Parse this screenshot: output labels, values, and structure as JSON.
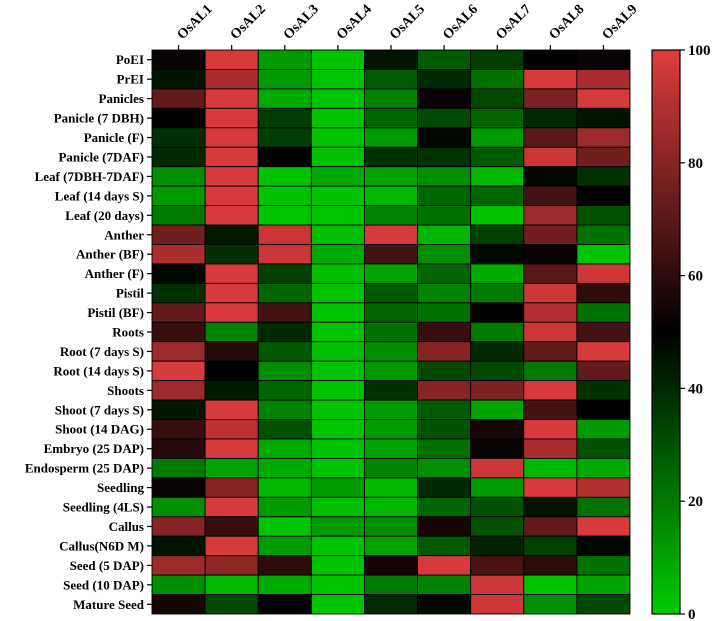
{
  "chart_data": {
    "type": "heatmap",
    "title": "",
    "columns": [
      "OsAL1",
      "OsAL2",
      "OsAL3",
      "OsAL4",
      "OsAL5",
      "OsAL6",
      "OsAL7",
      "OsAL8",
      "OsAL9"
    ],
    "rows": [
      "PoEI",
      "PrEI",
      "Panicles",
      "Panicle (7 DBH)",
      "Panicle (F)",
      "Panicle (7DAF)",
      "Leaf (7DBH-7DAF)",
      "Leaf (14 days S)",
      "Leaf (20 days)",
      "Anther",
      "Anther (BF)",
      "Anther (F)",
      "Pistil",
      "Pistil (BF)",
      "Roots",
      "Root (7 days S)",
      "Root (14 days S)",
      "Shoots",
      "Shoot (7 days S)",
      "Shoot (14 DAG)",
      "Embryo (25 DAP)",
      "Endosperm (25 DAP)",
      "Seedling",
      "Seedling (4LS)",
      "Callus",
      "Callus(N6D M)",
      "Seed (5 DAP)",
      "Seed (10 DAP)",
      "Mature Seed"
    ],
    "values": [
      [
        52,
        98,
        12,
        2,
        45,
        28,
        35,
        50,
        52
      ],
      [
        45,
        88,
        12,
        2,
        28,
        40,
        22,
        98,
        88
      ],
      [
        72,
        98,
        8,
        2,
        18,
        52,
        32,
        78,
        98
      ],
      [
        50,
        98,
        35,
        2,
        25,
        32,
        25,
        40,
        45
      ],
      [
        38,
        98,
        35,
        2,
        12,
        48,
        12,
        70,
        85
      ],
      [
        40,
        98,
        50,
        3,
        38,
        38,
        28,
        95,
        75
      ],
      [
        15,
        98,
        2,
        8,
        10,
        15,
        5,
        48,
        38
      ],
      [
        12,
        98,
        2,
        2,
        5,
        25,
        25,
        65,
        50
      ],
      [
        20,
        98,
        2,
        2,
        18,
        22,
        2,
        85,
        30
      ],
      [
        75,
        44,
        95,
        3,
        98,
        5,
        34,
        75,
        22
      ],
      [
        88,
        38,
        95,
        8,
        65,
        15,
        48,
        52,
        2
      ],
      [
        48,
        98,
        34,
        3,
        10,
        25,
        8,
        70,
        96
      ],
      [
        38,
        98,
        25,
        2,
        28,
        18,
        20,
        96,
        60
      ],
      [
        72,
        98,
        65,
        2,
        25,
        22,
        50,
        90,
        22
      ],
      [
        62,
        18,
        40,
        2,
        22,
        62,
        20,
        96,
        65
      ],
      [
        85,
        58,
        28,
        3,
        15,
        80,
        40,
        72,
        98
      ],
      [
        98,
        50,
        15,
        2,
        12,
        32,
        32,
        20,
        72
      ],
      [
        85,
        44,
        25,
        2,
        38,
        80,
        78,
        98,
        38
      ],
      [
        44,
        98,
        18,
        2,
        12,
        28,
        10,
        65,
        50
      ],
      [
        62,
        92,
        30,
        2,
        12,
        30,
        55,
        98,
        12
      ],
      [
        58,
        98,
        8,
        2,
        10,
        22,
        52,
        88,
        30
      ],
      [
        20,
        10,
        8,
        2,
        18,
        15,
        96,
        5,
        8
      ],
      [
        52,
        80,
        5,
        12,
        5,
        40,
        12,
        98,
        90
      ],
      [
        15,
        98,
        12,
        3,
        5,
        25,
        30,
        45,
        22
      ],
      [
        80,
        62,
        2,
        12,
        15,
        55,
        30,
        72,
        98
      ],
      [
        45,
        98,
        12,
        2,
        10,
        28,
        42,
        34,
        48
      ],
      [
        85,
        82,
        60,
        2,
        55,
        98,
        66,
        60,
        22
      ],
      [
        15,
        5,
        8,
        2,
        20,
        18,
        96,
        2,
        10
      ],
      [
        55,
        32,
        50,
        2,
        40,
        48,
        96,
        15,
        32
      ]
    ],
    "colorbar": {
      "min": 0,
      "max": 100,
      "ticks": [
        0,
        20,
        40,
        60,
        80,
        100
      ],
      "low_color": "#00cc00",
      "mid_color": "#000000",
      "high_color": "#e03c3c"
    }
  }
}
